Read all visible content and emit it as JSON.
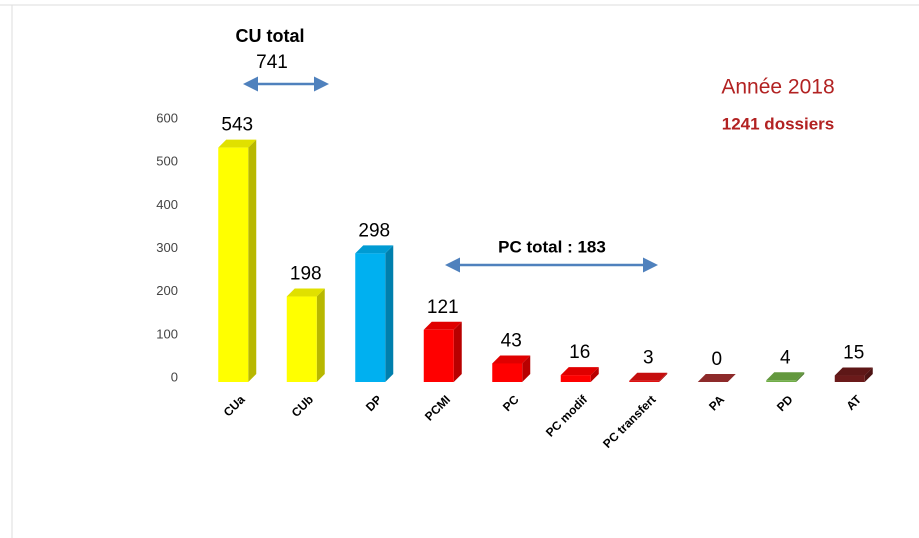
{
  "chart_data": {
    "type": "bar",
    "categories": [
      "CUa",
      "CUb",
      "DP",
      "PCMI",
      "PC",
      "PC modif",
      "PC transfert",
      "PA",
      "PD",
      "AT"
    ],
    "values": [
      543,
      198,
      298,
      121,
      43,
      16,
      3,
      0,
      4,
      15
    ],
    "colors": [
      "#ffff00",
      "#ffff00",
      "#00b0f0",
      "#ff0000",
      "#ff0000",
      "#ff0000",
      "#e01010",
      "#a03030",
      "#70ad47",
      "#6b1a1a"
    ],
    "ylim": [
      0,
      600
    ],
    "yticks": [
      0,
      100,
      200,
      300,
      400,
      500,
      600
    ],
    "grid": false,
    "annotations": {
      "cu_title": "CU total",
      "cu_value": "741",
      "pc_total": "PC total : 183",
      "year": "Année 2018",
      "dossiers": "1241 dossiers"
    }
  }
}
